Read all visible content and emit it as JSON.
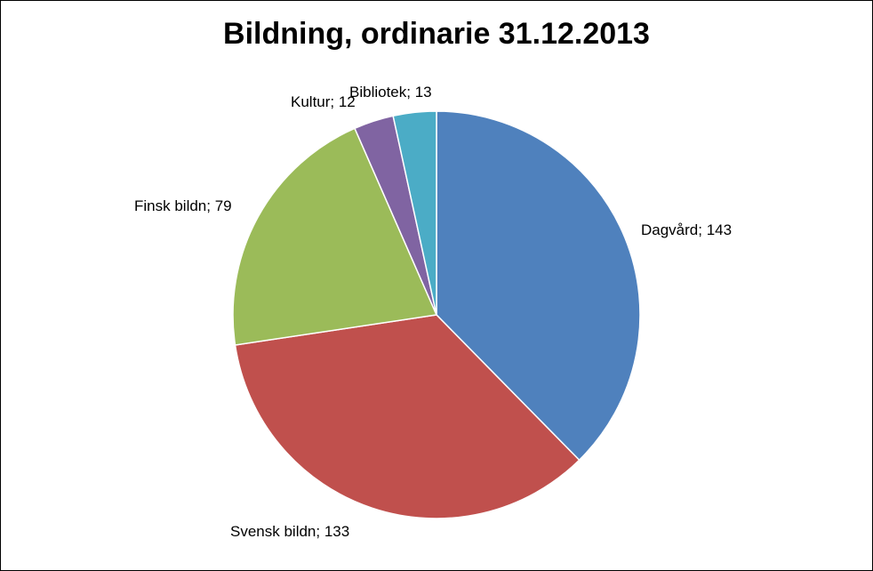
{
  "chart_data": {
    "type": "pie",
    "title": "Bildning, ordinarie 31.12.2013",
    "slices": [
      {
        "label": "Dagvård",
        "value": 143,
        "display": "Dagvård; 143",
        "color": "#4F81BD"
      },
      {
        "label": "Svensk bildn",
        "value": 133,
        "display": "Svensk bildn; 133",
        "color": "#C0504D"
      },
      {
        "label": "Finsk bildn",
        "value": 79,
        "display": "Finsk bildn; 79",
        "color": "#9BBB59"
      },
      {
        "label": "Kultur",
        "value": 12,
        "display": "Kultur; 12",
        "color": "#8064A2"
      },
      {
        "label": "Bibliotek",
        "value": 13,
        "display": "Bibliotek; 13",
        "color": "#4BACC6"
      }
    ],
    "legend": "none",
    "grid": false
  }
}
